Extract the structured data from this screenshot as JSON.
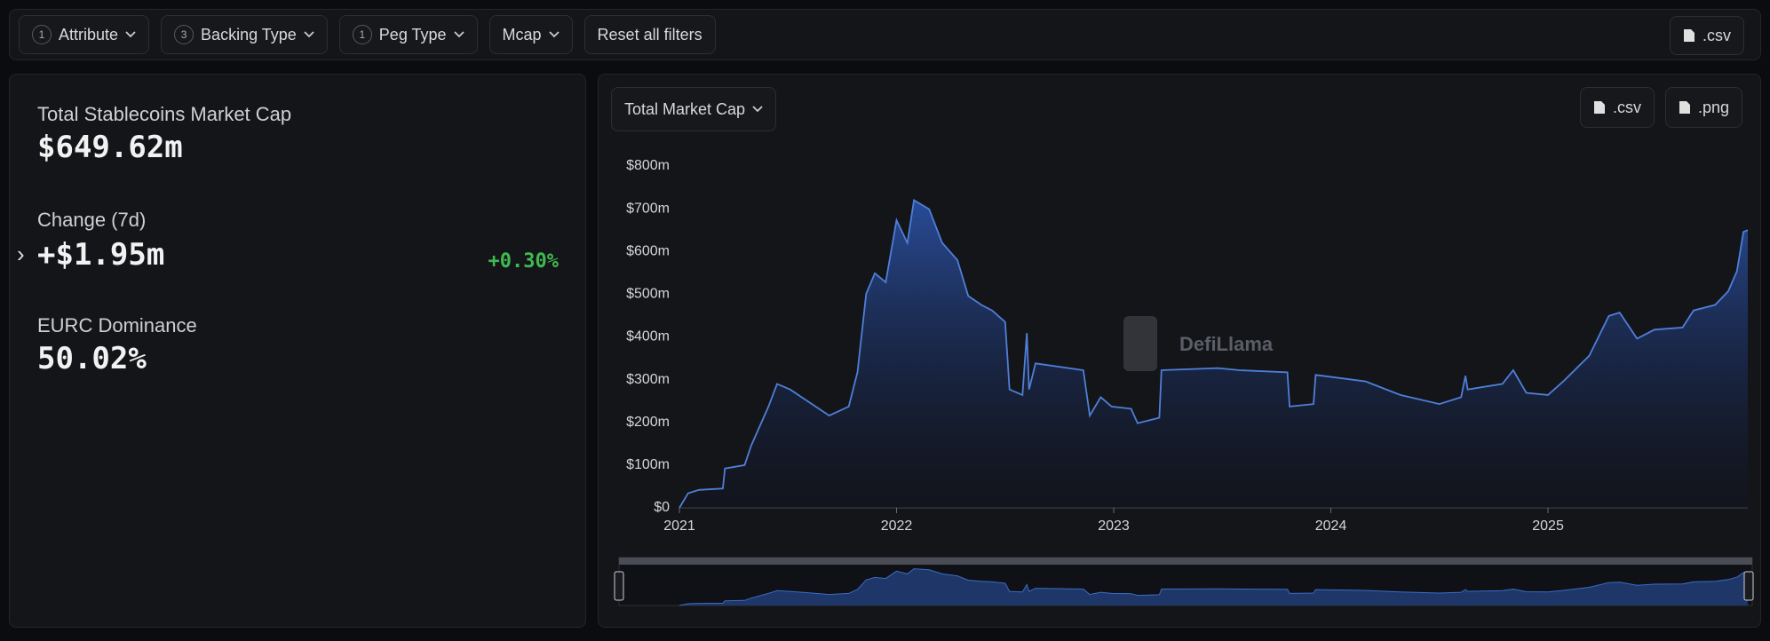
{
  "filters": [
    {
      "count": "1",
      "label": "Attribute"
    },
    {
      "count": "3",
      "label": "Backing Type"
    },
    {
      "count": "1",
      "label": "Peg Type"
    },
    {
      "label": "Mcap"
    },
    {
      "label": "Reset all filters"
    }
  ],
  "download": ".csv",
  "stats": {
    "total_label": "Total Stablecoins Market Cap",
    "total_value": "$649.62m",
    "change_label": "Change (7d)",
    "change_value": "+$1.95m",
    "change_pct": "+0.30%",
    "dominance_label": "EURC Dominance",
    "dominance_value": "50.02%"
  },
  "chart_data": {
    "type": "area",
    "dropdown": "Total Market Cap",
    "buttons": [
      ".csv",
      ".png"
    ],
    "watermark": "DefiLlama",
    "color": "#4f7fd9",
    "grid": false,
    "xlim": [
      2021,
      2025.92
    ],
    "xticks": [
      2021,
      2022,
      2023,
      2024,
      2025
    ],
    "ylim": [
      0,
      800
    ],
    "yticks": [
      {
        "value": 0,
        "label": "$0"
      },
      {
        "value": 100,
        "label": "$100m"
      },
      {
        "value": 200,
        "label": "$200m"
      },
      {
        "value": 300,
        "label": "$300m"
      },
      {
        "value": 400,
        "label": "$400m"
      },
      {
        "value": 500,
        "label": "$500m"
      },
      {
        "value": 600,
        "label": "$600m"
      },
      {
        "value": 700,
        "label": "$700m"
      },
      {
        "value": 800,
        "label": "$800m"
      }
    ],
    "x": [
      2021.0,
      2021.04,
      2021.09,
      2021.2,
      2021.21,
      2021.3,
      2021.33,
      2021.41,
      2021.45,
      2021.51,
      2021.61,
      2021.69,
      2021.78,
      2021.82,
      2021.86,
      2021.9,
      2021.95,
      2022.0,
      2022.05,
      2022.08,
      2022.15,
      2022.21,
      2022.28,
      2022.33,
      2022.39,
      2022.44,
      2022.5,
      2022.52,
      2022.58,
      2022.6,
      2022.61,
      2022.64,
      2022.86,
      2022.89,
      2022.94,
      2022.99,
      2023.08,
      2023.11,
      2023.21,
      2023.22,
      2023.48,
      2023.58,
      2023.8,
      2023.81,
      2023.92,
      2023.93,
      2024.16,
      2024.32,
      2024.5,
      2024.6,
      2024.62,
      2024.63,
      2024.79,
      2024.84,
      2024.9,
      2025.0,
      2025.07,
      2025.19,
      2025.28,
      2025.33,
      2025.41,
      2025.49,
      2025.62,
      2025.67,
      2025.77,
      2025.83,
      2025.87,
      2025.9,
      2025.92
    ],
    "values": [
      0,
      34,
      42,
      45,
      92,
      100,
      145,
      237,
      290,
      277,
      243,
      216,
      237,
      317,
      501,
      549,
      528,
      673,
      620,
      720,
      699,
      620,
      580,
      496,
      475,
      462,
      435,
      277,
      264,
      409,
      277,
      338,
      322,
      216,
      259,
      237,
      232,
      198,
      211,
      322,
      327,
      322,
      317,
      237,
      243,
      311,
      296,
      264,
      243,
      259,
      309,
      277,
      290,
      322,
      269,
      264,
      296,
      356,
      449,
      457,
      396,
      417,
      422,
      462,
      475,
      507,
      554,
      646,
      650
    ]
  }
}
